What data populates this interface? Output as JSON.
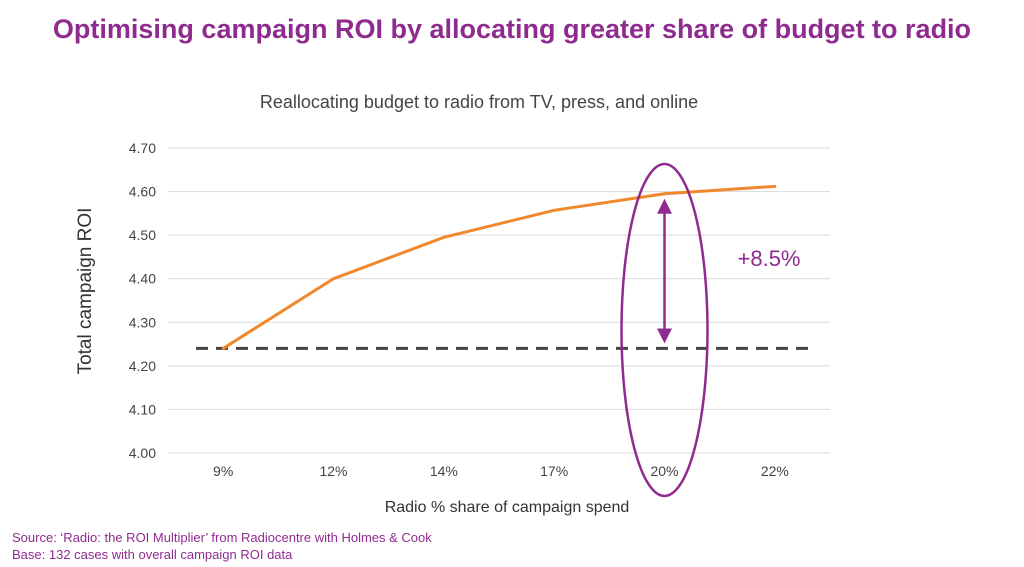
{
  "page_title": "Optimising campaign ROI by allocating greater share of budget to radio",
  "chart_data": {
    "type": "line",
    "title": "Reallocating budget to radio from TV, press, and online",
    "xlabel": "Radio % share of campaign spend",
    "ylabel": "Total campaign ROI",
    "categories": [
      "9%",
      "12%",
      "14%",
      "17%",
      "20%",
      "22%"
    ],
    "ylim": [
      4.0,
      4.7
    ],
    "yticks": [
      "4.00",
      "4.10",
      "4.20",
      "4.30",
      "4.40",
      "4.50",
      "4.60",
      "4.70"
    ],
    "series": [
      {
        "values": [
          4.24,
          4.4,
          4.495,
          4.557,
          4.595,
          4.612
        ],
        "color": "#f0882d"
      }
    ],
    "baseline": {
      "value": 4.24,
      "style": "dashed",
      "color": "#444444"
    },
    "grid": true,
    "annotation": {
      "text": "+8.5%",
      "category": "20%",
      "from": 4.24,
      "to": 4.595,
      "color": "#8f2b8f",
      "shape": "ellipse"
    }
  },
  "footer": {
    "source": "Source: ‘Radio: the ROI Multiplier’ from Radiocentre with Holmes & Cook",
    "base": "Base: 132 cases with overall campaign ROI data"
  }
}
